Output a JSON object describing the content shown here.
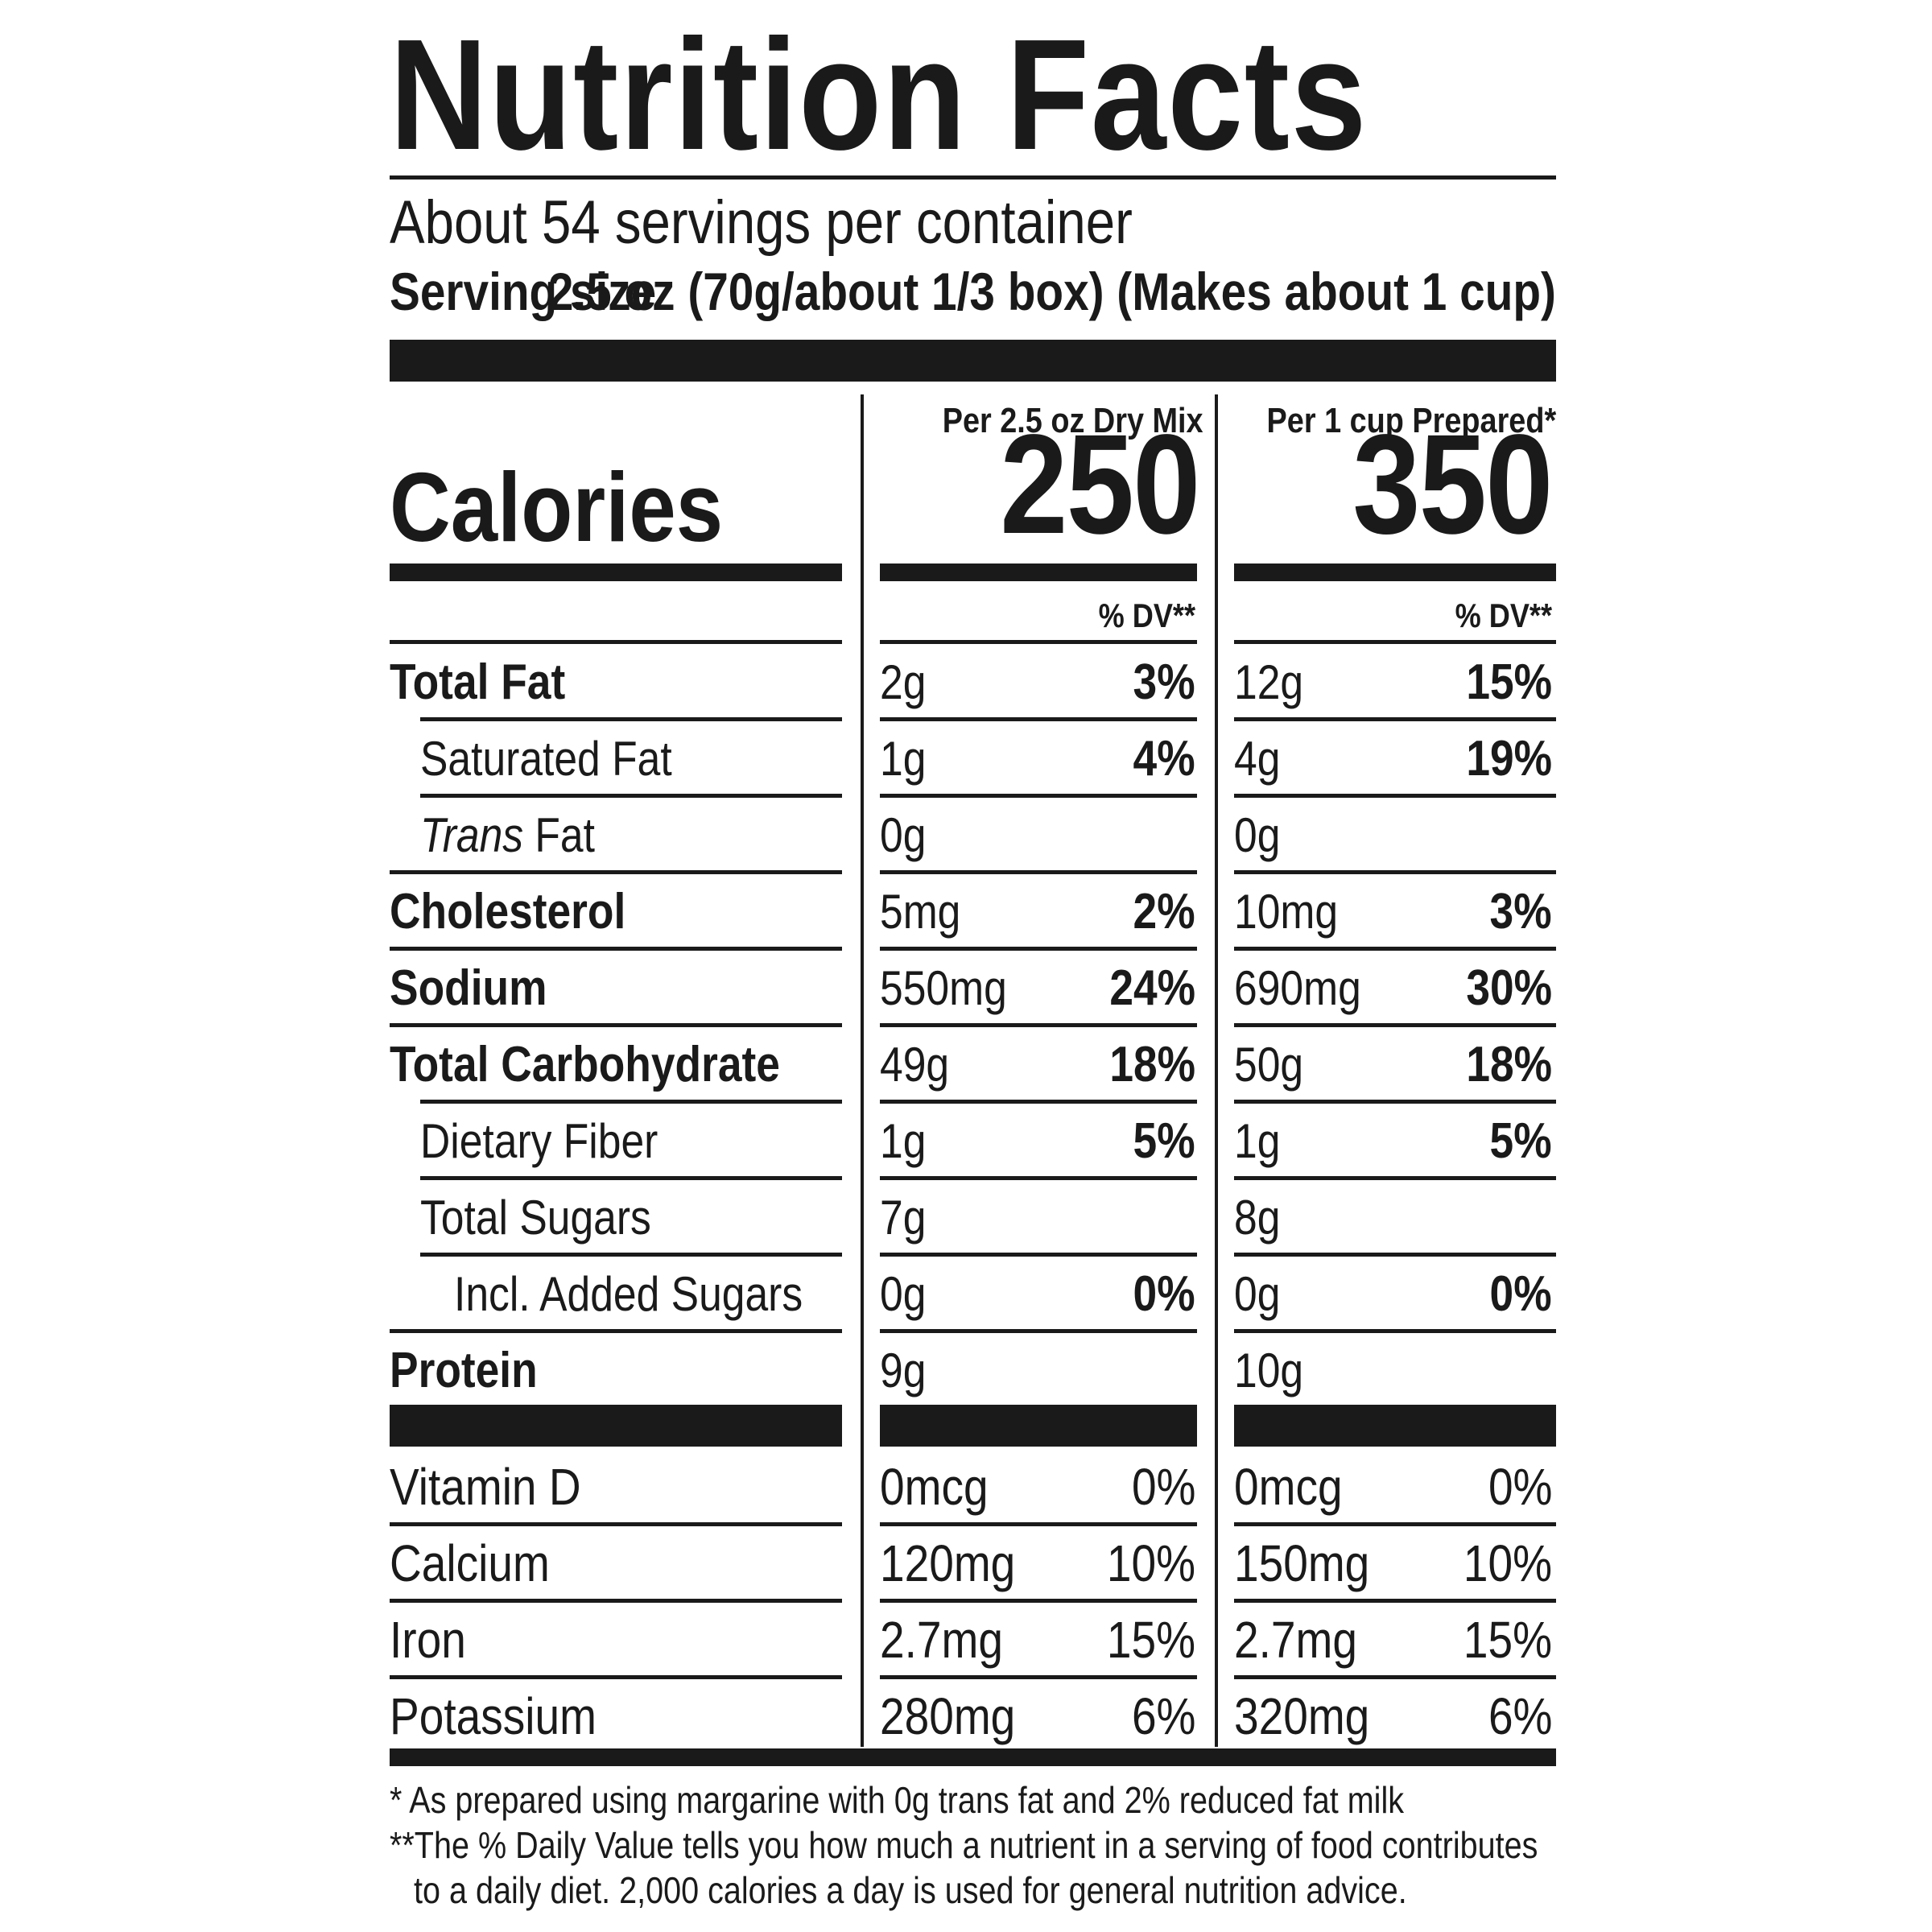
{
  "title": "Nutrition Facts",
  "servings_per_container": "About 54 servings per container",
  "serving_size": {
    "label": "Serving size",
    "value": "2.5 oz (70g/about 1/3 box) (Makes about 1 cup)"
  },
  "calories": {
    "label": "Calories",
    "columns": [
      {
        "header": "Per 2.5 oz Dry Mix",
        "value": "250",
        "dv_header": "% DV**"
      },
      {
        "header": "Per 1 cup Prepared*",
        "value": "350",
        "dv_header": "% DV**"
      }
    ]
  },
  "nutrients": [
    {
      "name": "Total Fat",
      "bold": true,
      "indent": 0,
      "dry_amount": "2g",
      "dry_dv": "3%",
      "prep_amount": "12g",
      "prep_dv": "15%"
    },
    {
      "name": "Saturated Fat",
      "bold": false,
      "indent": 1,
      "dry_amount": "1g",
      "dry_dv": "4%",
      "prep_amount": "4g",
      "prep_dv": "19%"
    },
    {
      "name_italic": "Trans",
      "name_rest": " Fat",
      "bold": false,
      "indent": 1,
      "dry_amount": "0g",
      "dry_dv": "",
      "prep_amount": "0g",
      "prep_dv": ""
    },
    {
      "name": "Cholesterol",
      "bold": true,
      "indent": 0,
      "dry_amount": "5mg",
      "dry_dv": "2%",
      "prep_amount": "10mg",
      "prep_dv": "3%"
    },
    {
      "name": "Sodium",
      "bold": true,
      "indent": 0,
      "dry_amount": "550mg",
      "dry_dv": "24%",
      "prep_amount": "690mg",
      "prep_dv": "30%"
    },
    {
      "name": "Total Carbohydrate",
      "bold": true,
      "indent": 0,
      "dry_amount": "49g",
      "dry_dv": "18%",
      "prep_amount": "50g",
      "prep_dv": "18%"
    },
    {
      "name": "Dietary Fiber",
      "bold": false,
      "indent": 1,
      "dry_amount": "1g",
      "dry_dv": "5%",
      "prep_amount": "1g",
      "prep_dv": "5%"
    },
    {
      "name": "Total Sugars",
      "bold": false,
      "indent": 1,
      "dry_amount": "7g",
      "dry_dv": "",
      "prep_amount": "8g",
      "prep_dv": ""
    },
    {
      "name": "Incl. Added Sugars",
      "bold": false,
      "indent": 2,
      "dry_amount": "0g",
      "dry_dv": "0%",
      "prep_amount": "0g",
      "prep_dv": "0%"
    },
    {
      "name": "Protein",
      "bold": true,
      "indent": 0,
      "dry_amount": "9g",
      "dry_dv": "",
      "prep_amount": "10g",
      "prep_dv": ""
    }
  ],
  "vitamins": [
    {
      "name": "Vitamin D",
      "dry_amount": "0mcg",
      "dry_dv": "0%",
      "prep_amount": "0mcg",
      "prep_dv": "0%"
    },
    {
      "name": "Calcium",
      "dry_amount": "120mg",
      "dry_dv": "10%",
      "prep_amount": "150mg",
      "prep_dv": "10%"
    },
    {
      "name": "Iron",
      "dry_amount": "2.7mg",
      "dry_dv": "15%",
      "prep_amount": "2.7mg",
      "prep_dv": "15%"
    },
    {
      "name": "Potassium",
      "dry_amount": "280mg",
      "dry_dv": "6%",
      "prep_amount": "320mg",
      "prep_dv": "6%"
    }
  ],
  "footnotes": {
    "line1": "* As prepared using margarine with 0g trans fat and 2% reduced fat milk",
    "line2": "**The % Daily Value tells you how much a nutrient in a serving of food contributes",
    "line3": "to a daily diet. 2,000 calories a day is used for general nutrition advice."
  }
}
